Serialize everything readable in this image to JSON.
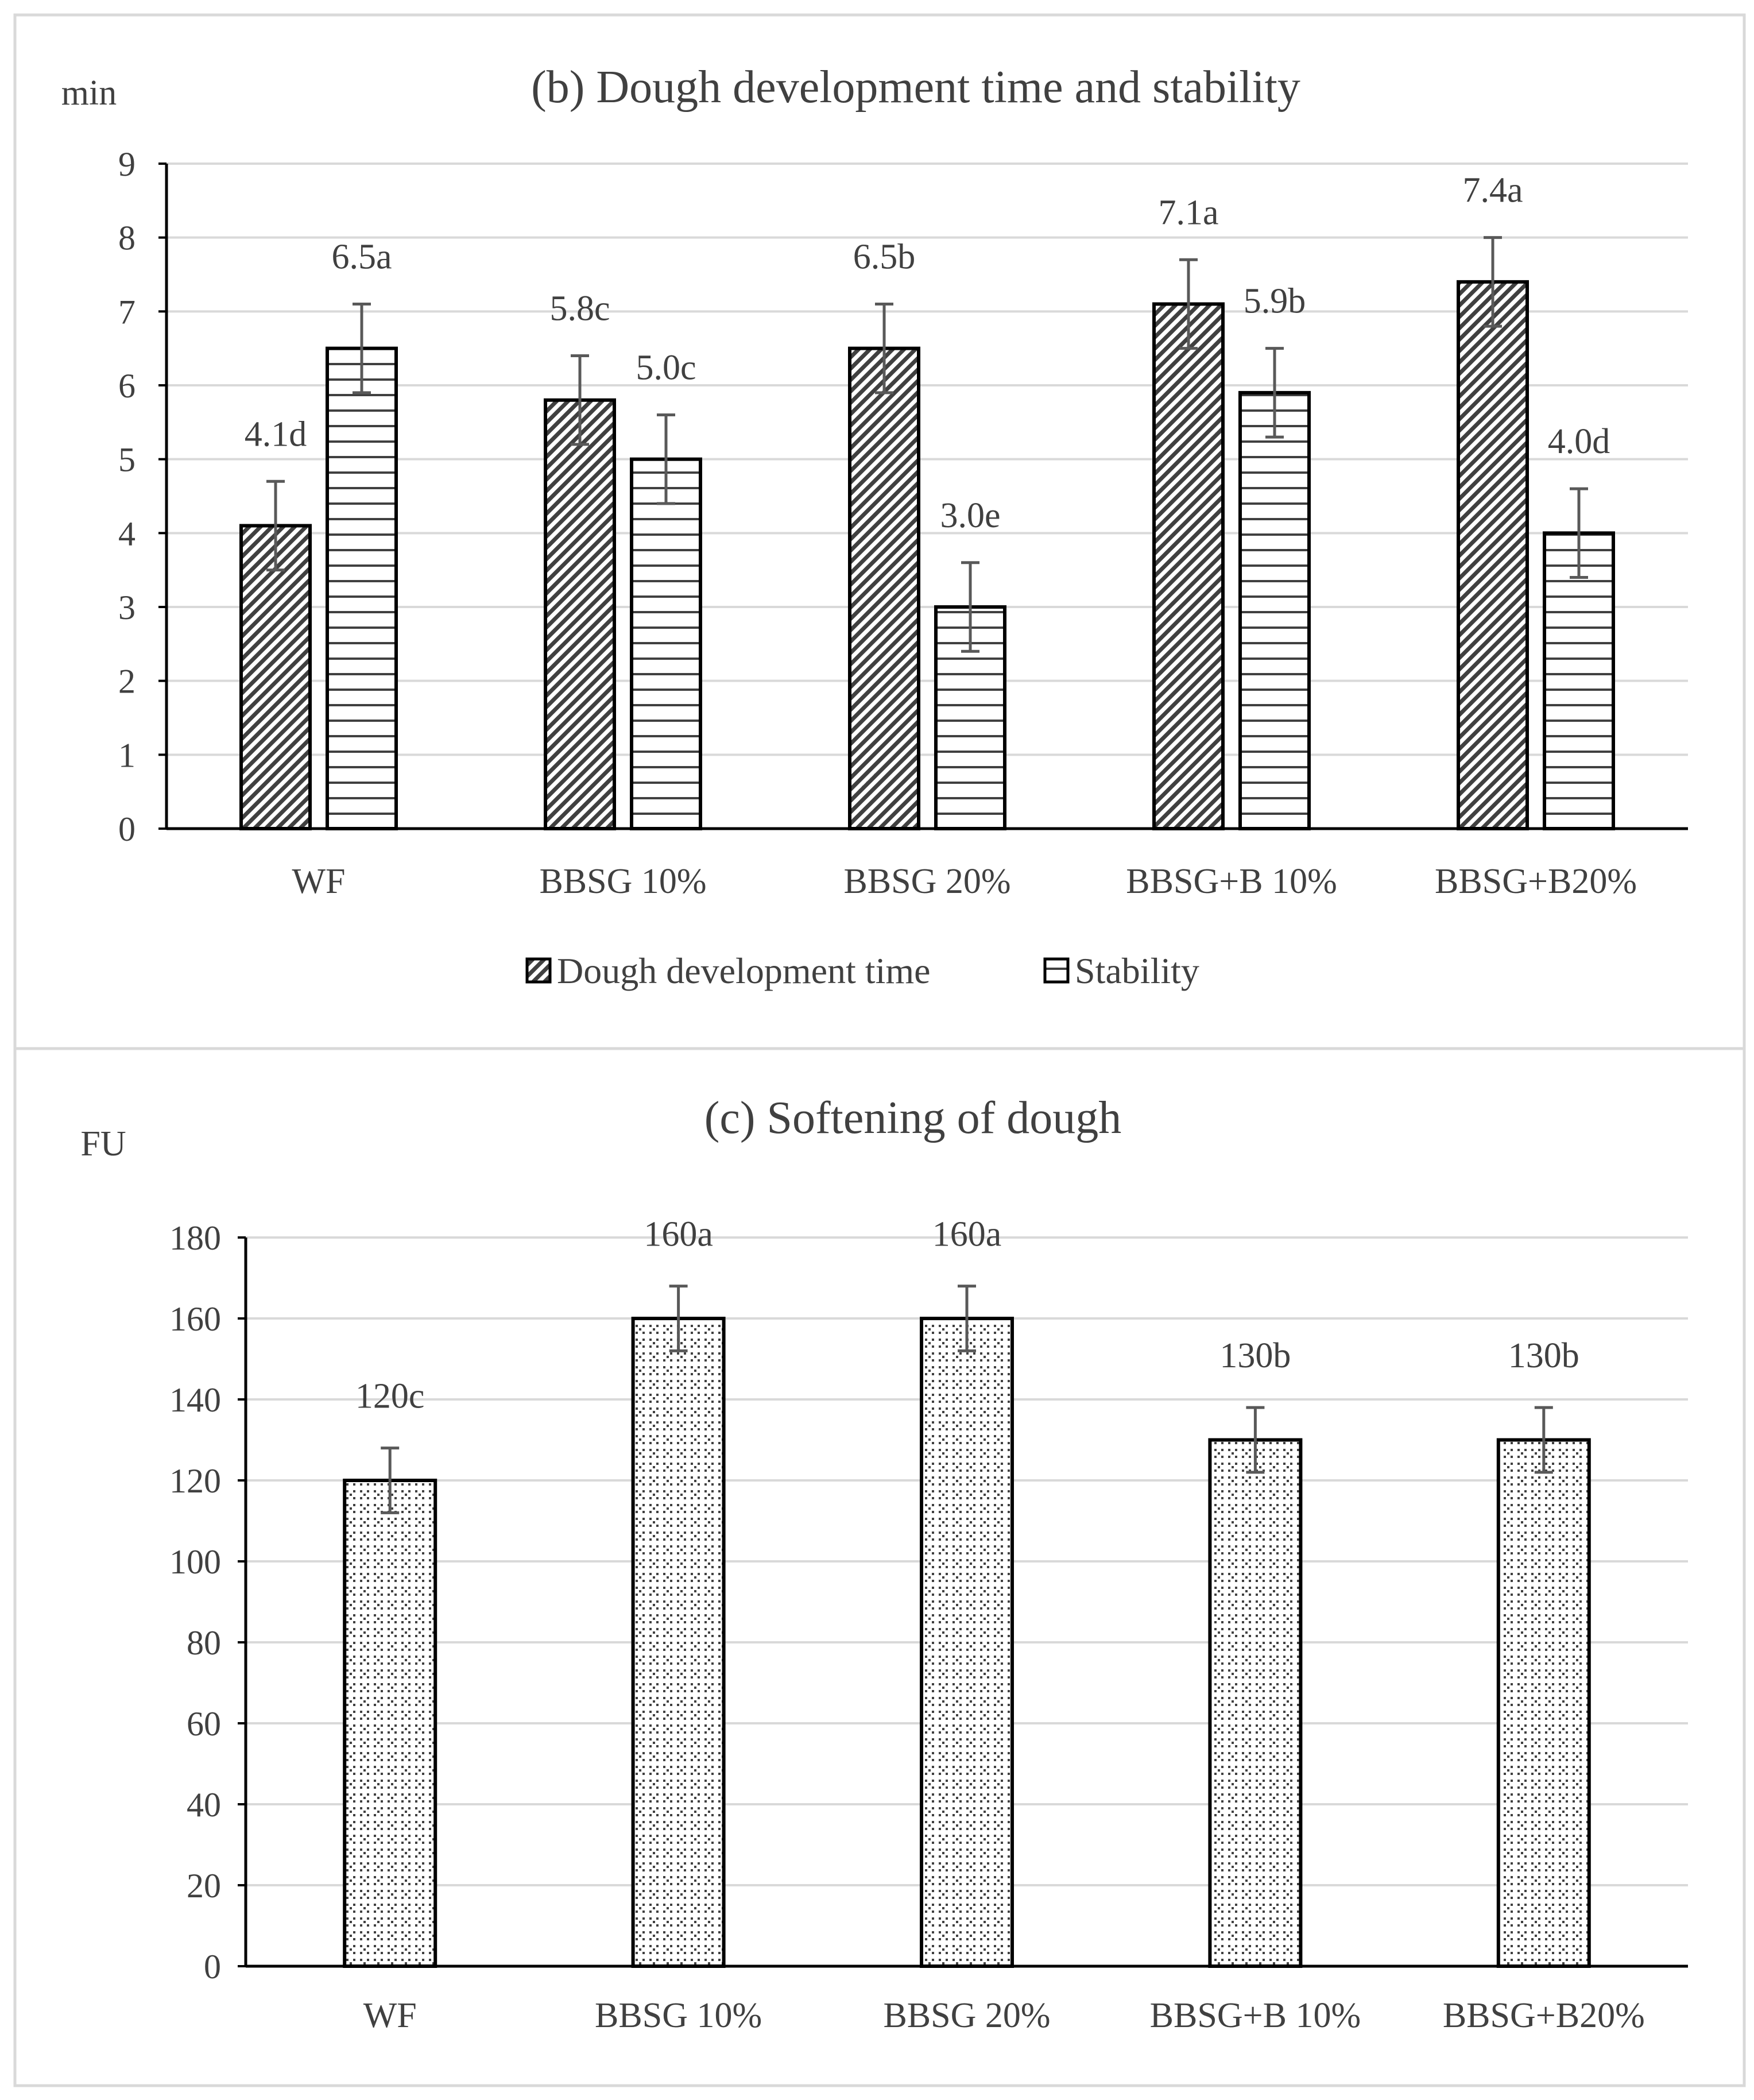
{
  "colors": {
    "bar_fill": "#ffffff",
    "bar_stroke": "#000000",
    "pattern_ink": "#404040",
    "gridline": "#d9d9d9",
    "axis": "#000000",
    "text": "#404040",
    "error_bar": "#595959",
    "panel_border": "#d9d9d9"
  },
  "chart_data": [
    {
      "type": "bar",
      "title": "(b) Dough development time and stability",
      "ylabel": "min",
      "xlabel": "",
      "ylim": [
        0,
        9
      ],
      "ytick_step": 1,
      "yticks": [
        "0",
        "1",
        "2",
        "3",
        "4",
        "5",
        "6",
        "7",
        "8",
        "9"
      ],
      "grid": true,
      "legend_position": "bottom",
      "categories": [
        "WF",
        "BBSG 10%",
        "BBSG 20%",
        "BBSG+B 10%",
        "BBSG+B20%"
      ],
      "series": [
        {
          "name": "Dough development time",
          "pattern": "diagonal",
          "values": [
            4.1,
            5.8,
            6.5,
            7.1,
            7.4
          ],
          "error": [
            0.6,
            0.6,
            0.6,
            0.6,
            0.6
          ],
          "labels": [
            "4.1d",
            "5.8c",
            "6.5b",
            "7.1a",
            "7.4a"
          ]
        },
        {
          "name": "Stability",
          "pattern": "horizontal",
          "values": [
            6.5,
            5.0,
            3.0,
            5.9,
            4.0
          ],
          "error": [
            0.6,
            0.6,
            0.6,
            0.6,
            0.6
          ],
          "labels": [
            "6.5a",
            "5.0c",
            "3.0e",
            "5.9b",
            "4.0d"
          ]
        }
      ]
    },
    {
      "type": "bar",
      "title": "(c) Softening of dough",
      "ylabel": "FU",
      "xlabel": "",
      "ylim": [
        0,
        180
      ],
      "ytick_step": 20,
      "yticks": [
        "0",
        "20",
        "40",
        "60",
        "80",
        "100",
        "120",
        "140",
        "160",
        "180"
      ],
      "grid": true,
      "legend_position": "none",
      "categories": [
        "WF",
        "BBSG 10%",
        "BBSG 20%",
        "BBSG+B 10%",
        "BBSG+B20%"
      ],
      "series": [
        {
          "name": "Softening of dough",
          "pattern": "dots",
          "values": [
            120,
            160,
            160,
            130,
            130
          ],
          "error": [
            8,
            8,
            8,
            8,
            8
          ],
          "labels": [
            "120c",
            "160a",
            "160a",
            "130b",
            "130b"
          ]
        }
      ]
    }
  ]
}
